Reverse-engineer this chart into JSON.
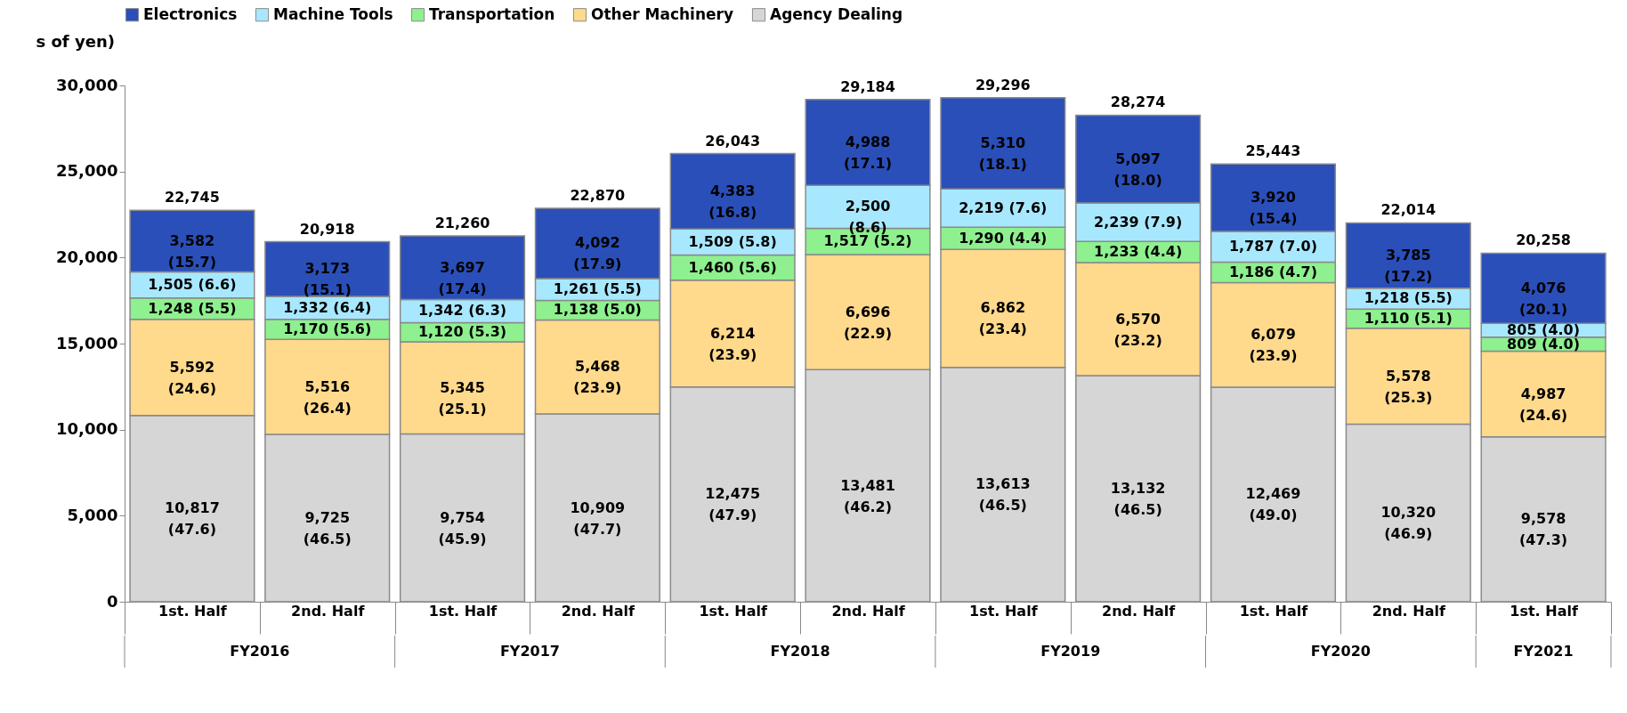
{
  "chart_data": {
    "type": "bar",
    "stacked": true,
    "ylabel": "s of yen)",
    "categories": [
      "1st. Half",
      "2nd. Half",
      "1st. Half",
      "2nd. Half",
      "1st. Half",
      "2nd. Half",
      "1st. Half",
      "2nd. Half",
      "1st. Half",
      "2nd. Half",
      "1st. Half"
    ],
    "annotations": [
      "FY2016",
      "FY2017",
      "FY2018",
      "FY2019",
      "FY2020",
      "FY2021"
    ],
    "series": [
      {
        "name": "Agency Dealing",
        "color": "#d6d6d6",
        "values": [
          10817,
          9725,
          9754,
          10909,
          12475,
          13481,
          13613,
          13132,
          12469,
          10320,
          9578
        ],
        "value_labels": [
          "10,817 (47.6)",
          "9,725 (46.5)",
          "9,754 (45.9)",
          "10,909 (47.7)",
          "12,475 (47.9)",
          "13,481 (46.2)",
          "13,613 (46.5)",
          "13,132 (46.5)",
          "12,469 (49.0)",
          "10,320 (46.9)",
          "9,578 (47.3)"
        ]
      },
      {
        "name": "Other Machinery",
        "color": "#ffd98c",
        "values": [
          5592,
          5516,
          5345,
          5468,
          6214,
          6696,
          6862,
          6570,
          6079,
          5578,
          4987
        ],
        "value_labels": [
          "5,592 (24.6)",
          "5,516 (26.4)",
          "5,345 (25.1)",
          "5,468 (23.9)",
          "6,214 (23.9)",
          "6,696 (22.9)",
          "6,862 (23.4)",
          "6,570 (23.2)",
          "6,079 (23.9)",
          "5,578 (25.3)",
          "4,987 (24.6)"
        ]
      },
      {
        "name": "Transportation",
        "color": "#8ef08e",
        "values": [
          1248,
          1170,
          1120,
          1138,
          1460,
          1517,
          1290,
          1233,
          1186,
          1110,
          809
        ],
        "value_labels": [
          "1,248 (5.5)",
          "1,170 (5.6)",
          "1,120 (5.3)",
          "1,138 (5.0)",
          "1,460 (5.6)",
          "1,517 (5.2)",
          "1,290 (4.4)",
          "1,233 (4.4)",
          "1,186 (4.7)",
          "1,110 (5.1)",
          "809 (4.0)"
        ]
      },
      {
        "name": "Machine Tools",
        "color": "#a8e8ff",
        "values": [
          1505,
          1332,
          1342,
          1261,
          1509,
          2500,
          2219,
          2239,
          1787,
          1218,
          805
        ],
        "value_labels": [
          "1,505 (6.6)",
          "1,332 (6.4)",
          "1,342 (6.3)",
          "1,261 (5.5)",
          "1,509 (5.8)",
          "2,500 (8.6)",
          "2,219 (7.6)",
          "2,239 (7.9)",
          "1,787 (7.0)",
          "1,218 (5.5)",
          "805 (4.0)"
        ]
      },
      {
        "name": "Electronics",
        "color": "#2a4fb8",
        "values": [
          3582,
          3173,
          3697,
          4092,
          4383,
          4988,
          5310,
          5097,
          3920,
          3785,
          4076
        ],
        "value_labels": [
          "3,582 (15.7)",
          "3,173 (15.1)",
          "3,697 (17.4)",
          "4,092 (17.9)",
          "4,383 (16.8)",
          "4,988 (17.1)",
          "5,310 (18.1)",
          "5,097 (18.0)",
          "3,920 (15.4)",
          "3,785 (17.2)",
          "4,076 (20.1)"
        ]
      }
    ],
    "totals": [
      "22,745",
      "20,918",
      "21,260",
      "22,870",
      "26,043",
      "29,184",
      "29,296",
      "28,274",
      "25,443",
      "22,014",
      "20,258"
    ],
    "ylim": [
      0,
      30000
    ],
    "yticks": [
      {
        "value": 0,
        "label": "0"
      },
      {
        "value": 5000,
        "label": "5,000"
      },
      {
        "value": 10000,
        "label": "10,000"
      },
      {
        "value": 15000,
        "label": "15,000"
      },
      {
        "value": 20000,
        "label": "20,000"
      },
      {
        "value": 25000,
        "label": "25,000"
      },
      {
        "value": 30000,
        "label": "30,000"
      }
    ],
    "legend": "top",
    "grid": false
  }
}
